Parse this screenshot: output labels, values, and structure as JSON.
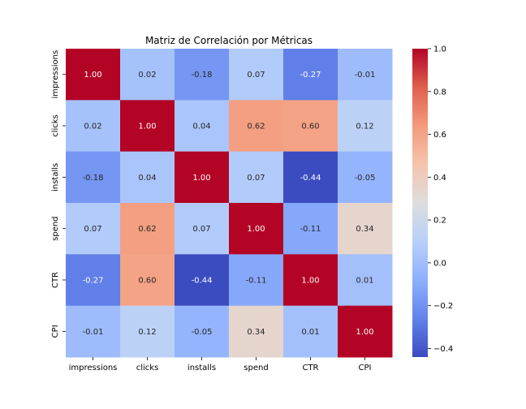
{
  "chart_data": {
    "type": "heatmap",
    "title": "Matriz de Correlación por Métricas",
    "xlabel": "",
    "ylabel": "",
    "x_categories": [
      "impressions",
      "clicks",
      "installs",
      "spend",
      "CTR",
      "CPI"
    ],
    "y_categories": [
      "impressions",
      "clicks",
      "installs",
      "spend",
      "CTR",
      "CPI"
    ],
    "values": [
      [
        1.0,
        0.02,
        -0.18,
        0.07,
        -0.27,
        -0.01
      ],
      [
        0.02,
        1.0,
        0.04,
        0.62,
        0.6,
        0.12
      ],
      [
        -0.18,
        0.04,
        1.0,
        0.07,
        -0.44,
        -0.05
      ],
      [
        0.07,
        0.62,
        0.07,
        1.0,
        -0.11,
        0.34
      ],
      [
        -0.27,
        0.6,
        -0.44,
        -0.11,
        1.0,
        0.01
      ],
      [
        -0.01,
        0.12,
        -0.05,
        0.34,
        0.01,
        1.0
      ]
    ],
    "value_format": "0.00",
    "colormap": "coolwarm",
    "vmin": -0.44,
    "vmax": 1.0,
    "colorbar_ticks": [
      1.0,
      0.8,
      0.6,
      0.4,
      0.2,
      0.0,
      -0.2,
      -0.4
    ],
    "colorbar_tick_labels": [
      "1.0",
      "0.8",
      "0.6",
      "0.4",
      "0.2",
      "0.0",
      "−0.2",
      "−0.4"
    ],
    "grid": false,
    "legend": "colorbar-right"
  }
}
